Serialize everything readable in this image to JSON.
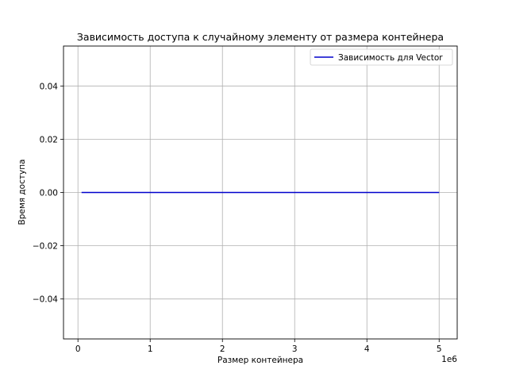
{
  "chart_data": {
    "type": "line",
    "title": "Зависимость доступа к случайному элементу от размера контейнера",
    "xlabel": "Размер контейнера",
    "ylabel": "Время доступа",
    "x_offset_label": "1e6",
    "xlim": [
      -0.2,
      5.25
    ],
    "ylim": [
      -0.055,
      0.055
    ],
    "x_ticks": [
      0,
      1,
      2,
      3,
      4,
      5
    ],
    "x_tick_labels": [
      "0",
      "1",
      "2",
      "3",
      "4",
      "5"
    ],
    "y_ticks": [
      -0.04,
      -0.02,
      0.0,
      0.02,
      0.04
    ],
    "y_tick_labels": [
      "−0.04",
      "−0.02",
      "0.00",
      "0.02",
      "0.04"
    ],
    "grid": true,
    "legend_position": "top-right",
    "series": [
      {
        "name": "Зависимость для Vector",
        "color": "#0000cc",
        "x": [
          0.05,
          1,
          2,
          3,
          4,
          5
        ],
        "y": [
          0,
          0,
          0,
          0,
          0,
          0
        ]
      }
    ]
  }
}
